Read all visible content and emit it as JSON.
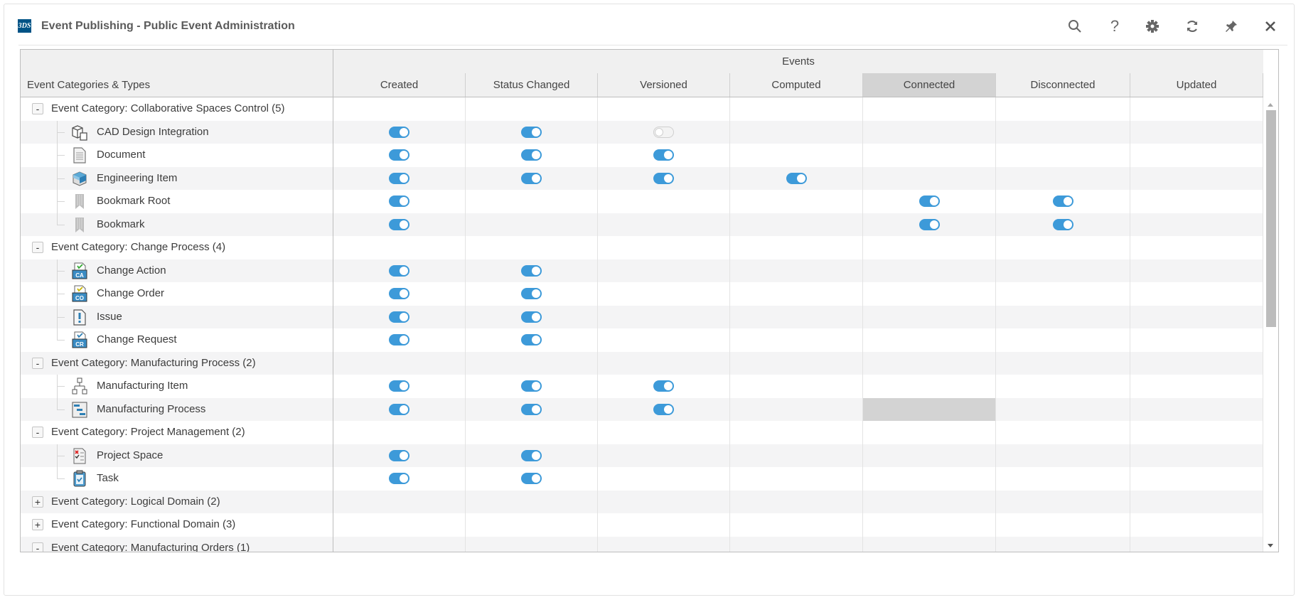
{
  "window": {
    "title": "Event Publishing - Public Event Administration",
    "logo_text": "3DS"
  },
  "toolbar": {
    "icons": [
      "search-icon",
      "help-icon",
      "settings-icon",
      "refresh-icon",
      "pin-icon",
      "close-icon"
    ]
  },
  "colors": {
    "toggle_on": "#3d9ad9",
    "selected_column": "#d3d3d3",
    "stripe": "#f4f4f5"
  },
  "table": {
    "first_column_header": "Event Categories & Types",
    "group_header": "Events",
    "columns": [
      "Created",
      "Status Changed",
      "Versioned",
      "Computed",
      "Connected",
      "Disconnected",
      "Updated"
    ],
    "selected_column": "Connected",
    "rows": [
      {
        "kind": "category",
        "label": "Event Category: Collaborative Spaces Control (5)",
        "expanded": true
      },
      {
        "kind": "item",
        "label": "CAD Design Integration",
        "icon": "cad-design-icon",
        "events": [
          "on",
          "on",
          "off",
          null,
          null,
          null,
          null
        ]
      },
      {
        "kind": "item",
        "label": "Document",
        "icon": "document-icon",
        "events": [
          "on",
          "on",
          "on",
          null,
          null,
          null,
          null
        ]
      },
      {
        "kind": "item",
        "label": "Engineering Item",
        "icon": "engineering-item-icon",
        "events": [
          "on",
          "on",
          "on",
          "on",
          null,
          null,
          null
        ]
      },
      {
        "kind": "item",
        "label": "Bookmark Root",
        "icon": "bookmark-icon",
        "events": [
          "on",
          null,
          null,
          null,
          "on",
          "on",
          null
        ]
      },
      {
        "kind": "item",
        "label": "Bookmark",
        "icon": "bookmark-icon",
        "last": true,
        "events": [
          "on",
          null,
          null,
          null,
          "on",
          "on",
          null
        ]
      },
      {
        "kind": "category",
        "label": "Event Category: Change Process (4)",
        "expanded": true
      },
      {
        "kind": "item",
        "label": "Change Action",
        "icon": "change-action-icon",
        "badge": "CA",
        "events": [
          "on",
          "on",
          null,
          null,
          null,
          null,
          null
        ]
      },
      {
        "kind": "item",
        "label": "Change Order",
        "icon": "change-order-icon",
        "badge": "CO",
        "events": [
          "on",
          "on",
          null,
          null,
          null,
          null,
          null
        ]
      },
      {
        "kind": "item",
        "label": "Issue",
        "icon": "issue-icon",
        "events": [
          "on",
          "on",
          null,
          null,
          null,
          null,
          null
        ]
      },
      {
        "kind": "item",
        "label": "Change Request",
        "icon": "change-request-icon",
        "badge": "CR",
        "last": true,
        "events": [
          "on",
          "on",
          null,
          null,
          null,
          null,
          null
        ]
      },
      {
        "kind": "category",
        "label": "Event Category: Manufacturing Process (2)",
        "expanded": true
      },
      {
        "kind": "item",
        "label": "Manufacturing Item",
        "icon": "manufacturing-item-icon",
        "events": [
          "on",
          "on",
          "on",
          null,
          null,
          null,
          null
        ]
      },
      {
        "kind": "item",
        "label": "Manufacturing Process",
        "icon": "manufacturing-process-icon",
        "last": true,
        "selected_cell": "Connected",
        "events": [
          "on",
          "on",
          "on",
          null,
          null,
          null,
          null
        ]
      },
      {
        "kind": "category",
        "label": "Event Category: Project Management (2)",
        "expanded": true
      },
      {
        "kind": "item",
        "label": "Project Space",
        "icon": "project-space-icon",
        "events": [
          "on",
          "on",
          null,
          null,
          null,
          null,
          null
        ]
      },
      {
        "kind": "item",
        "label": "Task",
        "icon": "task-icon",
        "last": true,
        "events": [
          "on",
          "on",
          null,
          null,
          null,
          null,
          null
        ]
      },
      {
        "kind": "category",
        "label": "Event Category: Logical Domain (2)",
        "expanded": false
      },
      {
        "kind": "category",
        "label": "Event Category: Functional Domain (3)",
        "expanded": false
      },
      {
        "kind": "category",
        "label": "Event Category: Manufacturing Orders (1)",
        "expanded": true
      }
    ]
  }
}
